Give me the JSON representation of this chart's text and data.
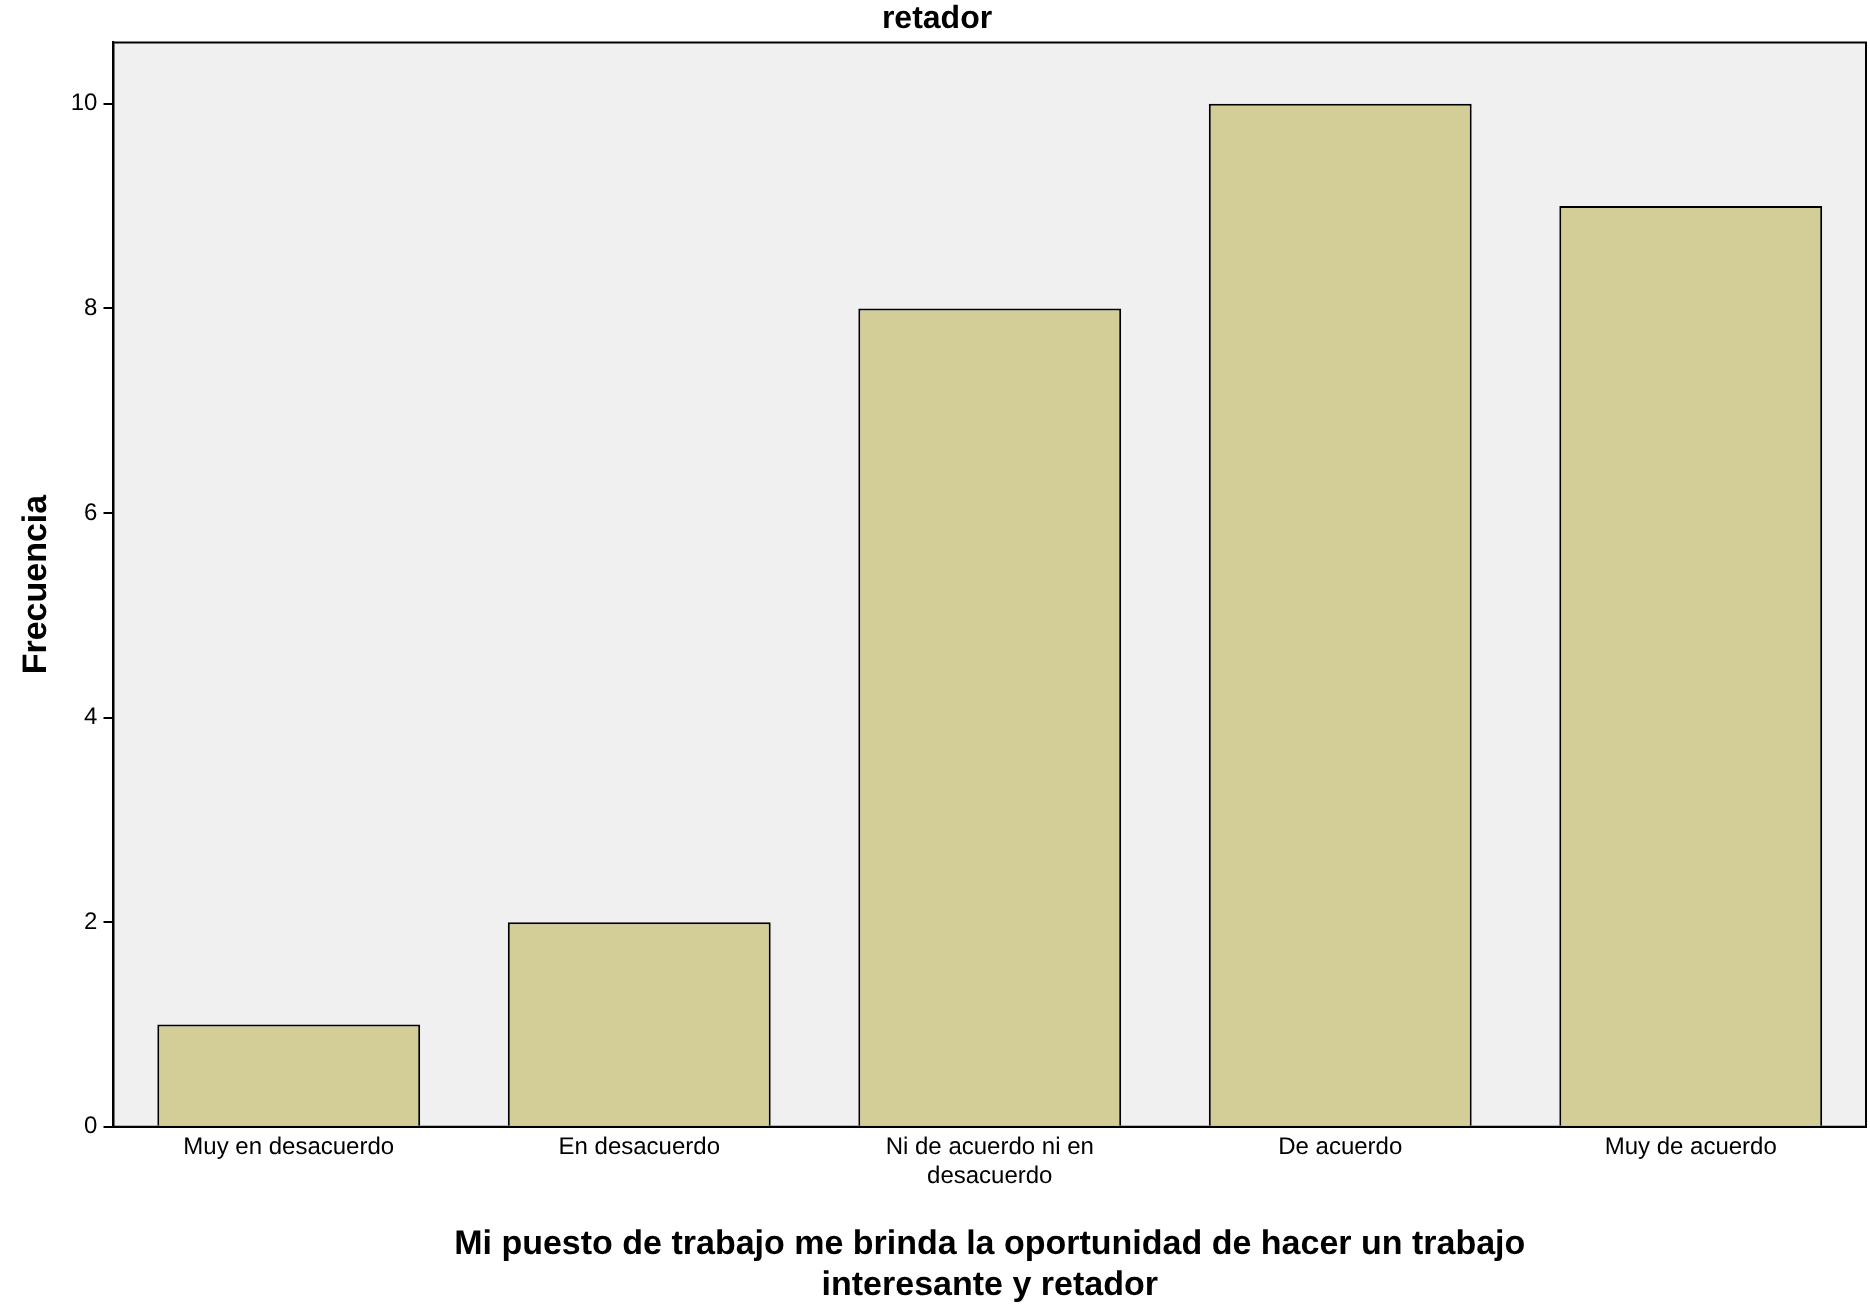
{
  "chart_data": {
    "type": "bar",
    "title": "retador",
    "xlabel": "Mi puesto de trabajo me brinda la oportunidad de hacer un trabajo interesante y retador",
    "ylabel": "Frecuencia",
    "categories": [
      "Muy en desacuerdo",
      "En desacuerdo",
      "Ni de acuerdo ni en desacuerdo",
      "De acuerdo",
      "Muy de acuerdo"
    ],
    "values": [
      1,
      2,
      8,
      10,
      9
    ],
    "color": "#d3ce97",
    "ylim": [
      0,
      10.6
    ],
    "yticks": [
      0,
      2,
      4,
      6,
      8,
      10
    ],
    "grid": false,
    "legend": false
  }
}
